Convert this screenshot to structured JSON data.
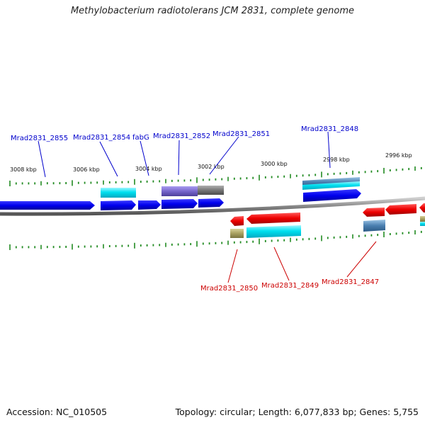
{
  "title": "Methylobacterium radiotolerans JCM 2831, complete genome",
  "footer": {
    "accession": "Accession: NC_010505",
    "summary": "Topology: circular; Length: 6,077,833 bp; Genes: 5,755"
  },
  "colors": {
    "forward_label": "#0000cc",
    "reverse_label": "#cc0000",
    "backbone": "#888888",
    "tick": "#228b22",
    "cds_forward": "#0000ee",
    "cds_reverse": "#ee0000",
    "cyan": "#00d8e8",
    "slate": "#4a7fb0",
    "purple": "#7766cc",
    "gray": "#777777",
    "olive": "#a8a060"
  },
  "kbp_labels": [
    "3008 kbp",
    "3006 kbp",
    "3004 kbp",
    "3002 kbp",
    "3000 kbp",
    "2998 kbp",
    "2996 kbp"
  ],
  "forward_labels": [
    "Mrad2831_2855",
    "Mrad2831_2854",
    "fabG",
    "Mrad2831_2852",
    "Mrad2831_2851",
    "Mrad2831_2848"
  ],
  "reverse_labels": [
    "Mrad2831_2850",
    "Mrad2831_2849",
    "Mrad2831_2847"
  ]
}
